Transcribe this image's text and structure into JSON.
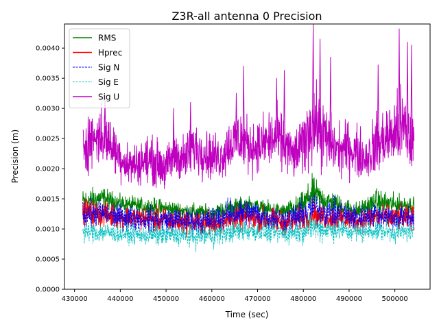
{
  "colors": {
    "background": "#ffffff",
    "axis": "#000000",
    "legend_border": "#cccccc"
  },
  "chart_data": {
    "type": "line",
    "title": "Z3R-all antenna 0 Precision",
    "xlabel": "Time (sec)",
    "ylabel": "Precision (m)",
    "xlim": [
      427800,
      507700
    ],
    "ylim": [
      0.0,
      0.0044
    ],
    "xticks": [
      430000,
      440000,
      450000,
      460000,
      470000,
      480000,
      490000,
      500000
    ],
    "xtick_labels": [
      "430000",
      "440000",
      "450000",
      "460000",
      "470000",
      "480000",
      "490000",
      "500000"
    ],
    "yticks": [
      0.0,
      0.0005,
      0.001,
      0.0015,
      0.002,
      0.0025,
      0.003,
      0.0035,
      0.004
    ],
    "ytick_labels": [
      "0.0000",
      "0.0005",
      "0.0010",
      "0.0015",
      "0.0020",
      "0.0025",
      "0.0030",
      "0.0035",
      "0.0040"
    ],
    "legend_position": "top-left",
    "x_start": 431800,
    "x_end": 504200,
    "series": [
      {
        "name": "RMS",
        "color": "#008000",
        "style": "solid",
        "x": [
          431800,
          436000,
          440000,
          444000,
          448000,
          452000,
          456000,
          460000,
          464000,
          468000,
          472000,
          476000,
          480000,
          482000,
          484000,
          488000,
          492000,
          496000,
          500000,
          504200
        ],
        "mid": [
          0.00145,
          0.00152,
          0.00142,
          0.00138,
          0.00135,
          0.00132,
          0.00128,
          0.00125,
          0.00135,
          0.0014,
          0.00132,
          0.00128,
          0.0014,
          0.0016,
          0.0015,
          0.00138,
          0.0013,
          0.00145,
          0.0014,
          0.0014
        ],
        "amp": [
          0.0003,
          0.00025,
          0.0002,
          0.0002,
          0.00022,
          0.0002,
          0.0002,
          0.0002,
          0.00022,
          0.0002,
          0.0002,
          0.0002,
          0.0003,
          0.0004,
          0.0003,
          0.00025,
          0.0002,
          0.0003,
          0.00025,
          0.0002
        ]
      },
      {
        "name": "Hprec",
        "color": "#ff0000",
        "style": "solid",
        "x": [
          431800,
          436000,
          440000,
          444000,
          448000,
          452000,
          456000,
          460000,
          464000,
          468000,
          472000,
          476000,
          480000,
          482000,
          484000,
          488000,
          492000,
          496000,
          500000,
          504200
        ],
        "mid": [
          0.00128,
          0.00125,
          0.0012,
          0.00118,
          0.00115,
          0.00112,
          0.0011,
          0.00108,
          0.00115,
          0.0012,
          0.00115,
          0.0011,
          0.00118,
          0.00125,
          0.0012,
          0.00118,
          0.00115,
          0.0012,
          0.00118,
          0.00118
        ],
        "amp": [
          0.0003,
          0.0003,
          0.00028,
          0.00028,
          0.0003,
          0.0003,
          0.00028,
          0.00028,
          0.0003,
          0.0003,
          0.0003,
          0.00028,
          0.0003,
          0.0003,
          0.0003,
          0.0003,
          0.00028,
          0.0003,
          0.0003,
          0.00028
        ]
      },
      {
        "name": "Sig N",
        "color": "#0000ff",
        "style": "dashed",
        "x": [
          431800,
          436000,
          440000,
          444000,
          448000,
          452000,
          456000,
          460000,
          464000,
          468000,
          472000,
          476000,
          480000,
          482000,
          484000,
          488000,
          492000,
          496000,
          500000,
          504200
        ],
        "mid": [
          0.00125,
          0.00125,
          0.0012,
          0.00118,
          0.00115,
          0.00115,
          0.00112,
          0.00115,
          0.00125,
          0.00128,
          0.0012,
          0.00115,
          0.00125,
          0.00135,
          0.0013,
          0.00125,
          0.00118,
          0.00125,
          0.00118,
          0.00118
        ],
        "amp": [
          0.00035,
          0.00032,
          0.0003,
          0.0003,
          0.0003,
          0.0003,
          0.0003,
          0.00032,
          0.00035,
          0.00035,
          0.0003,
          0.0003,
          0.00035,
          0.0004,
          0.00035,
          0.00035,
          0.0003,
          0.0003,
          0.0003,
          0.0003
        ]
      },
      {
        "name": "Sig E",
        "color": "#00bfbf",
        "style": "dashed",
        "x": [
          431800,
          436000,
          440000,
          444000,
          448000,
          452000,
          456000,
          460000,
          464000,
          468000,
          472000,
          476000,
          480000,
          482000,
          484000,
          488000,
          492000,
          496000,
          500000,
          504200
        ],
        "mid": [
          0.00095,
          0.00095,
          0.00092,
          0.0009,
          0.0009,
          0.0009,
          0.00088,
          0.0009,
          0.00095,
          0.00098,
          0.00095,
          0.00092,
          0.00098,
          0.00105,
          0.001,
          0.00098,
          0.00095,
          0.00098,
          0.00095,
          0.00095
        ],
        "amp": [
          0.00025,
          0.00025,
          0.00022,
          0.00022,
          0.00025,
          0.00025,
          0.00028,
          0.0003,
          0.00025,
          0.00028,
          0.00025,
          0.00025,
          0.0003,
          0.00035,
          0.0003,
          0.00028,
          0.00025,
          0.00025,
          0.00025,
          0.00022
        ]
      },
      {
        "name": "Sig U",
        "color": "#bf00bf",
        "style": "solid",
        "x": [
          431800,
          434000,
          436000,
          438000,
          440000,
          442000,
          444000,
          446000,
          448000,
          450000,
          452000,
          454000,
          456000,
          458000,
          460000,
          462000,
          464000,
          466000,
          468000,
          470000,
          472000,
          474000,
          476000,
          478000,
          480000,
          482000,
          484000,
          486000,
          488000,
          490000,
          492000,
          494000,
          496000,
          498000,
          500000,
          502000,
          504200
        ],
        "mid": [
          0.0024,
          0.0025,
          0.00255,
          0.0024,
          0.0022,
          0.00205,
          0.0021,
          0.00215,
          0.0021,
          0.002,
          0.00225,
          0.00215,
          0.00235,
          0.0023,
          0.0022,
          0.0022,
          0.0024,
          0.0025,
          0.0024,
          0.00235,
          0.00245,
          0.0025,
          0.0024,
          0.0022,
          0.0024,
          0.0028,
          0.0026,
          0.0024,
          0.0023,
          0.00235,
          0.00225,
          0.0022,
          0.0024,
          0.0025,
          0.0026,
          0.00265,
          0.0024
        ],
        "amp": [
          0.0007,
          0.00065,
          0.0007,
          0.0006,
          0.00055,
          0.0005,
          0.0005,
          0.00055,
          0.00055,
          0.0005,
          0.0006,
          0.00055,
          0.00065,
          0.0006,
          0.00055,
          0.00055,
          0.00065,
          0.00075,
          0.00065,
          0.0006,
          0.0007,
          0.00075,
          0.00065,
          0.00055,
          0.00075,
          0.001,
          0.00085,
          0.0007,
          0.0006,
          0.00065,
          0.0006,
          0.00055,
          0.0008,
          0.0007,
          0.0009,
          0.001,
          0.0007
        ]
      }
    ],
    "peaks": [
      {
        "series": "Sig U",
        "x": 436500,
        "y": 0.00322
      },
      {
        "series": "Sig U",
        "x": 451500,
        "y": 0.003
      },
      {
        "series": "Sig U",
        "x": 455200,
        "y": 0.0031
      },
      {
        "series": "Sig U",
        "x": 465200,
        "y": 0.00325
      },
      {
        "series": "Sig U",
        "x": 466800,
        "y": 0.0037
      },
      {
        "series": "Sig U",
        "x": 474000,
        "y": 0.0035
      },
      {
        "series": "Sig U",
        "x": 475700,
        "y": 0.00363
      },
      {
        "series": "Sig U",
        "x": 482000,
        "y": 0.0044
      },
      {
        "series": "Sig U",
        "x": 483500,
        "y": 0.00415
      },
      {
        "series": "Sig U",
        "x": 485800,
        "y": 0.00385
      },
      {
        "series": "Sig U",
        "x": 496200,
        "y": 0.00372
      },
      {
        "series": "Sig U",
        "x": 500800,
        "y": 0.00432
      },
      {
        "series": "Sig U",
        "x": 502600,
        "y": 0.0041
      },
      {
        "series": "Sig U",
        "x": 503500,
        "y": 0.00405
      }
    ]
  }
}
